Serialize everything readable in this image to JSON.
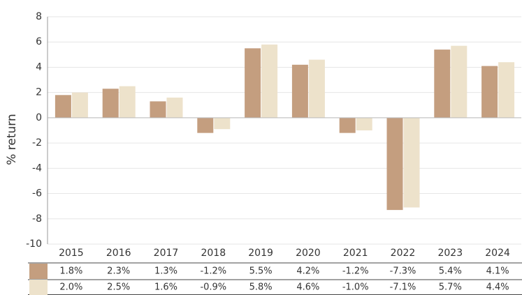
{
  "chart_data": {
    "type": "bar",
    "ylabel": "% return",
    "categories": [
      "2015",
      "2016",
      "2017",
      "2018",
      "2019",
      "2020",
      "2021",
      "2022",
      "2023",
      "2024"
    ],
    "series": [
      {
        "color": "#c49e7f",
        "values": [
          1.8,
          2.3,
          1.3,
          -1.2,
          5.5,
          4.2,
          -1.2,
          -7.3,
          5.4,
          4.1
        ],
        "value_labels": [
          "1.8%",
          "2.3%",
          "1.3%",
          "-1.2%",
          "5.5%",
          "4.2%",
          "-1.2%",
          "-7.3%",
          "5.4%",
          "4.1%"
        ]
      },
      {
        "color": "#ede2cb",
        "values": [
          2.0,
          2.5,
          1.6,
          -0.9,
          5.8,
          4.6,
          -1.0,
          -7.1,
          5.7,
          4.4
        ],
        "value_labels": [
          "2.0%",
          "2.5%",
          "1.6%",
          "-0.9%",
          "5.8%",
          "4.6%",
          "-1.0%",
          "-7.1%",
          "5.7%",
          "4.4%"
        ]
      }
    ],
    "ylim": [
      -10,
      8
    ],
    "yticks": [
      -10,
      -8,
      -6,
      -4,
      -2,
      0,
      2,
      4,
      6,
      8
    ],
    "grid": true
  }
}
